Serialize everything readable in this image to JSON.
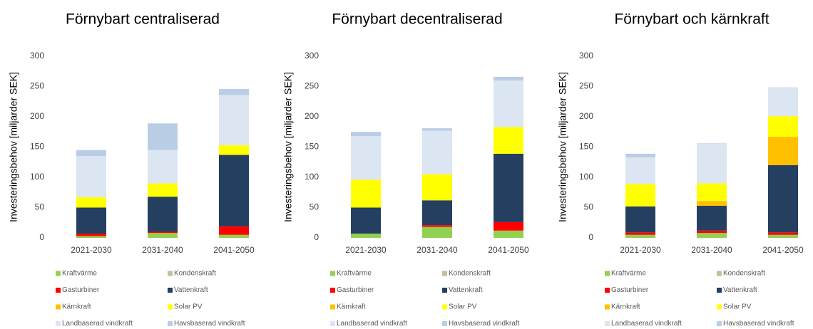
{
  "chart_data": [
    {
      "type": "bar",
      "stacked": true,
      "title": "Förnybart centraliserad",
      "y_label": "Investeringsbehov [miljarder SEK]",
      "categories": [
        "2021-2030",
        "2031-2040",
        "2041-2050"
      ],
      "ylim": [
        0,
        300
      ],
      "yticks": [
        0,
        50,
        100,
        150,
        200,
        250,
        300
      ],
      "series": [
        {
          "name": "Kraftvärme",
          "color": "#92d050",
          "values": [
            3,
            8,
            5
          ]
        },
        {
          "name": "Kondenskraft",
          "color": "#c4bd97",
          "values": [
            0,
            0,
            0
          ]
        },
        {
          "name": "Gasturbiner",
          "color": "#ff0000",
          "values": [
            4,
            2,
            14
          ]
        },
        {
          "name": "Vattenkraft",
          "color": "#243f60",
          "values": [
            43,
            58,
            118
          ]
        },
        {
          "name": "Kärnkraft",
          "color": "#ffc000",
          "values": [
            0,
            0,
            0
          ]
        },
        {
          "name": "Solar PV",
          "color": "#ffff00",
          "values": [
            17,
            22,
            16
          ]
        },
        {
          "name": "Landbaserad vindkraft",
          "color": "#dce6f2",
          "values": [
            68,
            55,
            83
          ]
        },
        {
          "name": "Havsbaserad vindkraft",
          "color": "#b9cde5",
          "values": [
            10,
            44,
            10
          ]
        }
      ]
    },
    {
      "type": "bar",
      "stacked": true,
      "title": "Förnybart decentraliserad",
      "y_label": "Investeringsbehov [miljarder SEK]",
      "categories": [
        "2021-2030",
        "2031-2040",
        "2041-2050"
      ],
      "ylim": [
        0,
        300
      ],
      "yticks": [
        0,
        50,
        100,
        150,
        200,
        250,
        300
      ],
      "series": [
        {
          "name": "Kraftvärme",
          "color": "#92d050",
          "values": [
            7,
            18,
            12
          ]
        },
        {
          "name": "Kondenskraft",
          "color": "#c4bd97",
          "values": [
            0,
            0,
            0
          ]
        },
        {
          "name": "Gasturbiner",
          "color": "#ff0000",
          "values": [
            0,
            3,
            14
          ]
        },
        {
          "name": "Vattenkraft",
          "color": "#243f60",
          "values": [
            43,
            41,
            113
          ]
        },
        {
          "name": "Kärnkraft",
          "color": "#ffc000",
          "values": [
            0,
            0,
            0
          ]
        },
        {
          "name": "Solar PV",
          "color": "#ffff00",
          "values": [
            46,
            43,
            44
          ]
        },
        {
          "name": "Landbaserad vindkraft",
          "color": "#dce6f2",
          "values": [
            72,
            72,
            77
          ]
        },
        {
          "name": "Havsbaserad vindkraft",
          "color": "#b9cde5",
          "values": [
            7,
            4,
            6
          ]
        }
      ]
    },
    {
      "type": "bar",
      "stacked": true,
      "title": "Förnybart och kärnkraft",
      "y_label": "Investeringsbehov [miljarder SEK]",
      "categories": [
        "2021-2030",
        "2031-2040",
        "2041-2050"
      ],
      "ylim": [
        0,
        300
      ],
      "yticks": [
        0,
        50,
        100,
        150,
        200,
        250,
        300
      ],
      "series": [
        {
          "name": "Kraftvärme",
          "color": "#92d050",
          "values": [
            5,
            8,
            5
          ]
        },
        {
          "name": "Kondenskraft",
          "color": "#c4bd97",
          "values": [
            0,
            0,
            0
          ]
        },
        {
          "name": "Gasturbiner",
          "color": "#ff0000",
          "values": [
            4,
            4,
            4
          ]
        },
        {
          "name": "Vattenkraft",
          "color": "#243f60",
          "values": [
            43,
            41,
            111
          ]
        },
        {
          "name": "Kärnkraft",
          "color": "#ffc000",
          "values": [
            0,
            8,
            47
          ]
        },
        {
          "name": "Solar PV",
          "color": "#ffff00",
          "values": [
            37,
            29,
            34
          ]
        },
        {
          "name": "Landbaserad vindkraft",
          "color": "#dce6f2",
          "values": [
            44,
            65,
            48
          ]
        },
        {
          "name": "Havsbaserad vindkraft",
          "color": "#b9cde5",
          "values": [
            6,
            1,
            0
          ]
        }
      ]
    }
  ]
}
